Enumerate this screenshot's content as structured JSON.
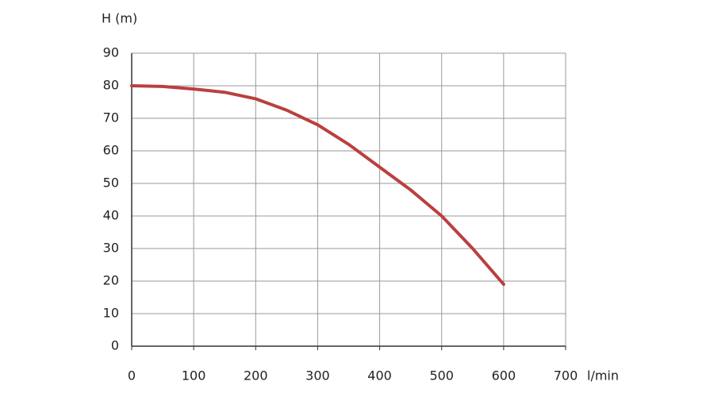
{
  "chart_data": {
    "type": "line",
    "y_label": "H (m)",
    "x_label": "l/min",
    "x": [
      0,
      50,
      100,
      150,
      200,
      250,
      300,
      350,
      400,
      450,
      500,
      550,
      600
    ],
    "series": [
      {
        "color": "#b9403e",
        "values": [
          80,
          79.8,
          79,
          78,
          76,
          72.5,
          68,
          62,
          55,
          48,
          40,
          30,
          19
        ]
      }
    ],
    "xlim": [
      0,
      700
    ],
    "xticks": [
      0,
      100,
      200,
      300,
      400,
      500,
      600,
      700
    ],
    "ylim": [
      0,
      90
    ],
    "yticks": [
      0,
      10,
      20,
      30,
      40,
      50,
      60,
      70,
      80,
      90
    ],
    "grid": true
  }
}
